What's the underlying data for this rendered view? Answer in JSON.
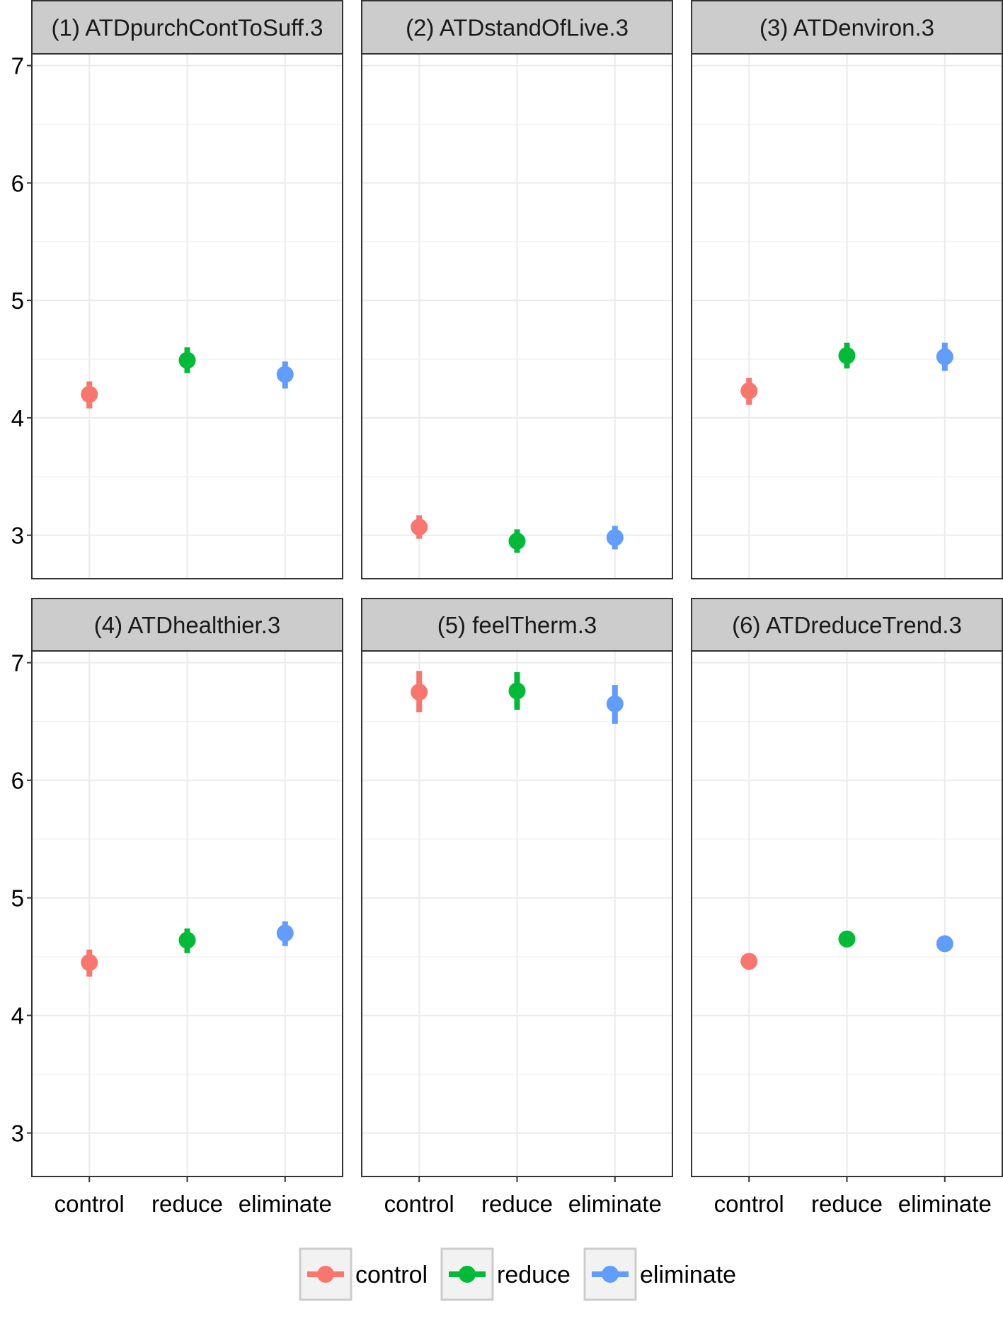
{
  "chart_data": {
    "type": "scatter",
    "description_style": "faceted point-range plot",
    "categories": [
      "control",
      "reduce",
      "eliminate"
    ],
    "ylim": [
      2.63,
      7.1
    ],
    "yticks": [
      3,
      4,
      5,
      6,
      7
    ],
    "grid": true,
    "legend_position": "bottom",
    "colors": {
      "control": "#F8766D",
      "reduce": "#00BA38",
      "eliminate": "#619CFF"
    },
    "legend": [
      {
        "key": "control",
        "label": "control"
      },
      {
        "key": "reduce",
        "label": "reduce"
      },
      {
        "key": "eliminate",
        "label": "eliminate"
      }
    ],
    "panels": [
      {
        "title": "(1) ATDpurchContToSuff.3",
        "points": [
          {
            "category": "control",
            "value": 4.2,
            "lower": 4.08,
            "upper": 4.31
          },
          {
            "category": "reduce",
            "value": 4.49,
            "lower": 4.38,
            "upper": 4.6
          },
          {
            "category": "eliminate",
            "value": 4.37,
            "lower": 4.25,
            "upper": 4.48
          }
        ]
      },
      {
        "title": "(2) ATDstandOfLive.3",
        "points": [
          {
            "category": "control",
            "value": 3.07,
            "lower": 2.97,
            "upper": 3.17
          },
          {
            "category": "reduce",
            "value": 2.95,
            "lower": 2.85,
            "upper": 3.05
          },
          {
            "category": "eliminate",
            "value": 2.98,
            "lower": 2.88,
            "upper": 3.08
          }
        ]
      },
      {
        "title": "(3) ATDenviron.3",
        "points": [
          {
            "category": "control",
            "value": 4.23,
            "lower": 4.11,
            "upper": 4.34
          },
          {
            "category": "reduce",
            "value": 4.53,
            "lower": 4.42,
            "upper": 4.64
          },
          {
            "category": "eliminate",
            "value": 4.52,
            "lower": 4.4,
            "upper": 4.64
          }
        ]
      },
      {
        "title": "(4) ATDhealthier.3",
        "points": [
          {
            "category": "control",
            "value": 4.45,
            "lower": 4.33,
            "upper": 4.56
          },
          {
            "category": "reduce",
            "value": 4.64,
            "lower": 4.53,
            "upper": 4.74
          },
          {
            "category": "eliminate",
            "value": 4.7,
            "lower": 4.59,
            "upper": 4.8
          }
        ]
      },
      {
        "title": "(5) feelTherm.3",
        "points": [
          {
            "category": "control",
            "value": 6.75,
            "lower": 6.58,
            "upper": 6.93
          },
          {
            "category": "reduce",
            "value": 6.76,
            "lower": 6.6,
            "upper": 6.92
          },
          {
            "category": "eliminate",
            "value": 6.65,
            "lower": 6.48,
            "upper": 6.81
          }
        ]
      },
      {
        "title": "(6) ATDreduceTrend.3",
        "points": [
          {
            "category": "control",
            "value": 4.46,
            "lower": 4.39,
            "upper": 4.52
          },
          {
            "category": "reduce",
            "value": 4.65,
            "lower": 4.58,
            "upper": 4.71
          },
          {
            "category": "eliminate",
            "value": 4.61,
            "lower": 4.54,
            "upper": 4.67
          }
        ]
      }
    ]
  }
}
